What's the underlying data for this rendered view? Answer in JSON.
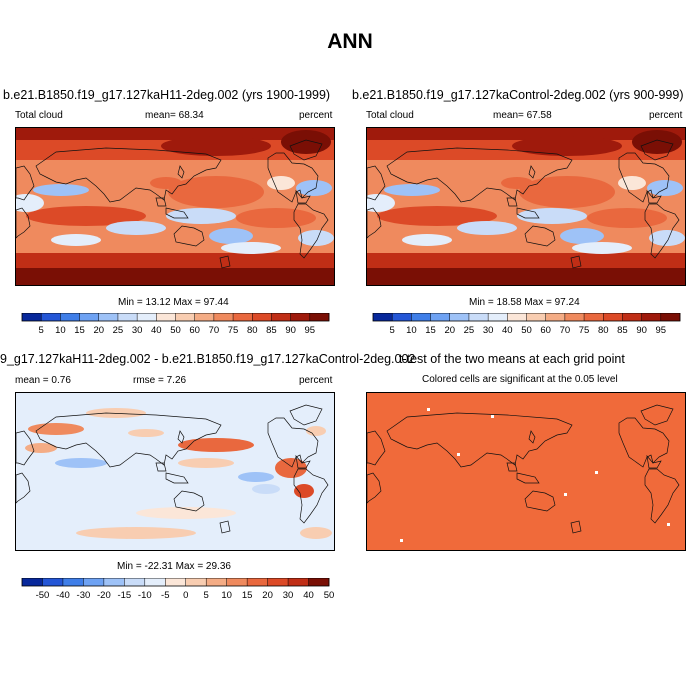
{
  "figure_title": "ANN",
  "chart_data": [
    {
      "type": "heatmap",
      "title": "b.e21.B1850.f19_g17.127kaH11-2deg.002 (yrs 1900-1999)",
      "left_label": "Total cloud",
      "mean_label": "mean=",
      "mean": "68.34",
      "units": "percent",
      "minmax_text": "Min =  13.12 Max =  97.44",
      "min": 13.12,
      "max": 97.44,
      "colorbar_levels": [
        "5",
        "10",
        "15",
        "20",
        "25",
        "30",
        "40",
        "50",
        "60",
        "70",
        "75",
        "80",
        "85",
        "90",
        "95"
      ]
    },
    {
      "type": "heatmap",
      "title": "b.e21.B1850.f19_g17.127kaControl-2deg.002 (yrs 900-999)",
      "left_label": "Total cloud",
      "mean_label": "mean=",
      "mean": "67.58",
      "units": "percent",
      "minmax_text": "Min =  18.58 Max =  97.24",
      "min": 18.58,
      "max": 97.24,
      "colorbar_levels": [
        "5",
        "10",
        "15",
        "20",
        "25",
        "30",
        "40",
        "50",
        "60",
        "70",
        "75",
        "80",
        "85",
        "90",
        "95"
      ]
    },
    {
      "type": "heatmap",
      "title": "9_g17.127kaH11-2deg.002 - b.e21.B1850.f19_g17.127kaControl-2deg.002",
      "left_label": "mean =   0.76",
      "rmse_label": "rmse =   7.26",
      "units": "percent",
      "minmax_text": "Min = -22.31 Max =  29.36",
      "min": -22.31,
      "max": 29.36,
      "colorbar_levels": [
        "-50",
        "-40",
        "-30",
        "-20",
        "-15",
        "-10",
        "-5",
        "0",
        "5",
        "10",
        "15",
        "20",
        "30",
        "40",
        "50"
      ]
    },
    {
      "type": "heatmap",
      "title": "t-test of the two means at each grid point",
      "subtitle": "Colored cells are significant at the 0.05 level"
    }
  ],
  "colors": {
    "abs_palette": [
      "#08289b",
      "#2456d6",
      "#3f7ee8",
      "#6ea2f3",
      "#9ec2f7",
      "#c9dcf8",
      "#e4eefb",
      "#fbe6d8",
      "#f8cdb1",
      "#f4ac85",
      "#ef8a5e",
      "#e9683e",
      "#dc4a27",
      "#c02e16",
      "#9f1a0c",
      "#7a0f05"
    ],
    "diff_palette": [
      "#08289b",
      "#2456d6",
      "#3f7ee8",
      "#6ea2f3",
      "#9ec2f7",
      "#c9dcf8",
      "#e4eefb",
      "#fbe6d8",
      "#f8cdb1",
      "#f4ac85",
      "#ef8a5e",
      "#e9683e",
      "#dc4a27",
      "#c02e16",
      "#7a0f05"
    ],
    "ttest_fill": "#f06a3a"
  }
}
